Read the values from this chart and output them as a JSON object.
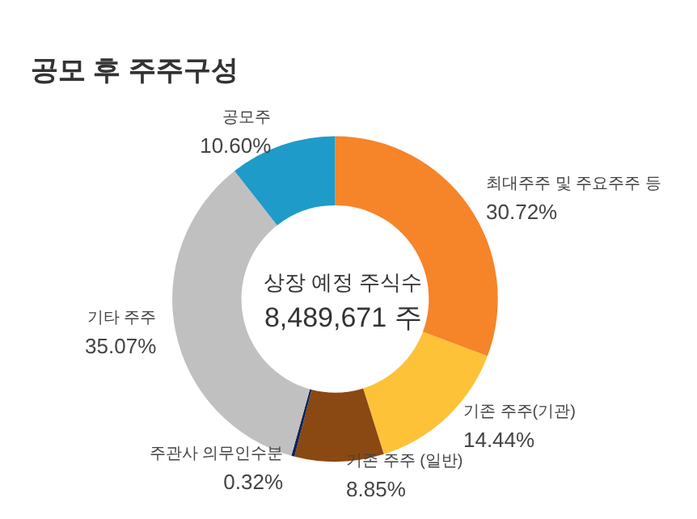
{
  "chart_data": {
    "type": "donut",
    "title": "공모 후 주주구성",
    "categories": [
      "최대주주 및 주요주주 등",
      "기존 주주(기관)",
      "기존 주주 (일반)",
      "주관사 의무인수분",
      "기타 주주",
      "공모주"
    ],
    "values": [
      30.72,
      14.44,
      8.85,
      0.32,
      35.07,
      10.6
    ],
    "value_labels": [
      "30.72%",
      "14.44%",
      "8.85%",
      "0.32%",
      "35.07%",
      "10.60%"
    ],
    "colors": [
      "#f68428",
      "#fdc237",
      "#8a4813",
      "#0f2456",
      "#c0c0c0",
      "#1e9bc8"
    ],
    "annotations": [
      "상장 예정 주식수",
      "8,489,671 주"
    ],
    "legend": false
  }
}
